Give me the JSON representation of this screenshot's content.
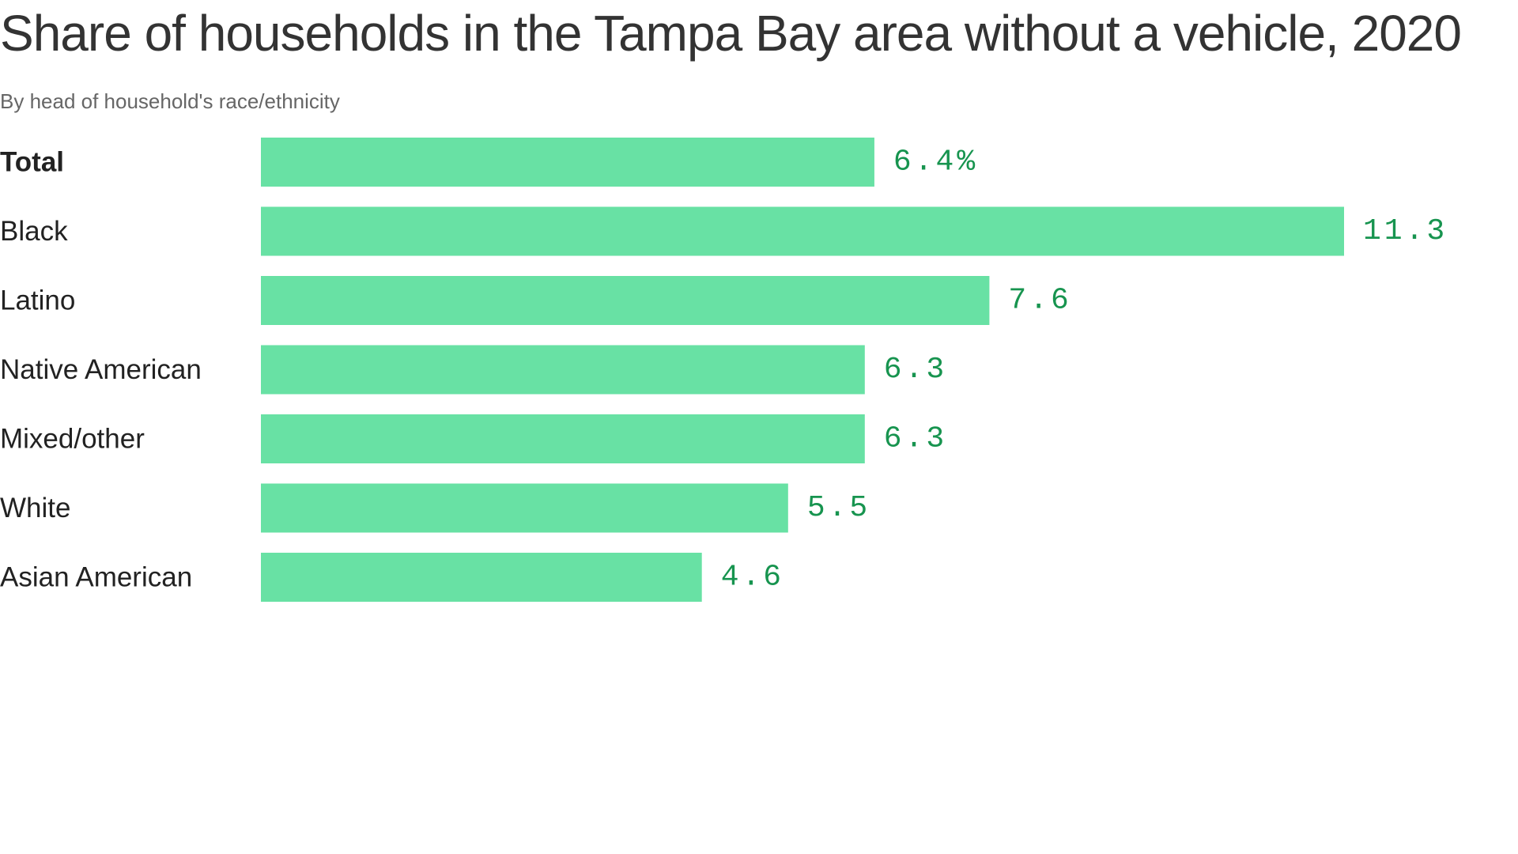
{
  "chart_data": {
    "type": "bar",
    "orientation": "horizontal",
    "title": "Share of households in the Tampa Bay area without a vehicle, 2020",
    "subtitle": "By head of household's race/ethnicity",
    "categories": [
      "Total",
      "Black",
      "Latino",
      "Native American",
      "Mixed/other",
      "White",
      "Asian American"
    ],
    "values": [
      6.4,
      11.3,
      7.6,
      6.3,
      6.3,
      5.5,
      4.6
    ],
    "value_labels": [
      "6.4%",
      "11.3",
      "7.6",
      "6.3",
      "6.3",
      "5.5",
      "4.6"
    ],
    "highlight_category": "Total",
    "bar_color": "#68e1a4",
    "value_label_color": "#17944f",
    "xlim": [
      0,
      11.3
    ],
    "grid": false,
    "legend": "none"
  }
}
